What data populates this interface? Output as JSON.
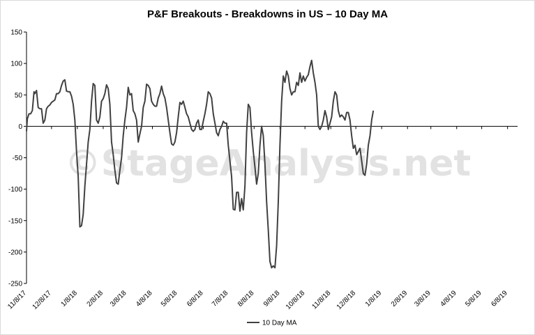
{
  "chart_data": {
    "type": "line",
    "title": "P&F Breakouts - Breakdowns in US – 10 Day MA",
    "xlabel": "",
    "ylabel": "",
    "ylim": [
      -250,
      150
    ],
    "yticks": [
      150,
      100,
      50,
      0,
      -50,
      -100,
      -150,
      -200,
      -250
    ],
    "xlim": [
      "2017-11-08",
      "2019-06-20"
    ],
    "xticks": [
      {
        "date": "2017-11-08",
        "label": "11/8/17"
      },
      {
        "date": "2017-12-08",
        "label": "12/8/17"
      },
      {
        "date": "2018-01-08",
        "label": "1/8/18"
      },
      {
        "date": "2018-02-08",
        "label": "2/8/18"
      },
      {
        "date": "2018-03-08",
        "label": "3/8/18"
      },
      {
        "date": "2018-04-08",
        "label": "4/8/18"
      },
      {
        "date": "2018-05-08",
        "label": "5/8/18"
      },
      {
        "date": "2018-06-08",
        "label": "6/8/18"
      },
      {
        "date": "2018-07-08",
        "label": "7/8/18"
      },
      {
        "date": "2018-08-08",
        "label": "8/8/18"
      },
      {
        "date": "2018-09-08",
        "label": "9/8/18"
      },
      {
        "date": "2018-10-08",
        "label": "10/8/18"
      },
      {
        "date": "2018-11-08",
        "label": "11/8/18"
      },
      {
        "date": "2018-12-08",
        "label": "12/8/18"
      },
      {
        "date": "2019-01-08",
        "label": "1/8/19"
      },
      {
        "date": "2019-02-08",
        "label": "2/8/19"
      },
      {
        "date": "2019-03-08",
        "label": "3/8/19"
      },
      {
        "date": "2019-04-08",
        "label": "4/8/19"
      },
      {
        "date": "2019-05-08",
        "label": "5/8/19"
      },
      {
        "date": "2019-06-08",
        "label": "6/8/19"
      }
    ],
    "grid": false,
    "legend": "bottom-center",
    "watermark": "©StageAnalysis.net",
    "series": [
      {
        "name": "10 Day MA",
        "color": "#404040",
        "points": [
          [
            "2017-11-08",
            -8
          ],
          [
            "2017-11-09",
            12
          ],
          [
            "2017-11-11",
            20
          ],
          [
            "2017-11-13",
            20
          ],
          [
            "2017-11-15",
            25
          ],
          [
            "2017-11-17",
            55
          ],
          [
            "2017-11-18",
            52
          ],
          [
            "2017-11-20",
            57
          ],
          [
            "2017-11-22",
            30
          ],
          [
            "2017-11-24",
            28
          ],
          [
            "2017-11-26",
            28
          ],
          [
            "2017-11-28",
            5
          ],
          [
            "2017-11-30",
            10
          ],
          [
            "2017-12-02",
            28
          ],
          [
            "2017-12-04",
            32
          ],
          [
            "2017-12-06",
            34
          ],
          [
            "2017-12-08",
            38
          ],
          [
            "2017-12-10",
            40
          ],
          [
            "2017-12-12",
            42
          ],
          [
            "2017-12-14",
            52
          ],
          [
            "2017-12-16",
            52
          ],
          [
            "2017-12-18",
            55
          ],
          [
            "2017-12-20",
            65
          ],
          [
            "2017-12-22",
            72
          ],
          [
            "2017-12-24",
            74
          ],
          [
            "2017-12-26",
            56
          ],
          [
            "2017-12-28",
            55
          ],
          [
            "2017-12-30",
            55
          ],
          [
            "2018-01-01",
            48
          ],
          [
            "2018-01-03",
            35
          ],
          [
            "2018-01-05",
            10
          ],
          [
            "2018-01-07",
            -40
          ],
          [
            "2018-01-09",
            -80
          ],
          [
            "2018-01-11",
            -160
          ],
          [
            "2018-01-13",
            -158
          ],
          [
            "2018-01-15",
            -140
          ],
          [
            "2018-01-17",
            -95
          ],
          [
            "2018-01-19",
            -60
          ],
          [
            "2018-01-21",
            -25
          ],
          [
            "2018-01-23",
            -5
          ],
          [
            "2018-01-25",
            40
          ],
          [
            "2018-01-27",
            68
          ],
          [
            "2018-01-29",
            65
          ],
          [
            "2018-01-31",
            10
          ],
          [
            "2018-02-02",
            5
          ],
          [
            "2018-02-04",
            15
          ],
          [
            "2018-02-06",
            40
          ],
          [
            "2018-02-08",
            44
          ],
          [
            "2018-02-10",
            52
          ],
          [
            "2018-02-12",
            66
          ],
          [
            "2018-02-14",
            60
          ],
          [
            "2018-02-16",
            35
          ],
          [
            "2018-02-18",
            -25
          ],
          [
            "2018-02-20",
            -45
          ],
          [
            "2018-02-22",
            -70
          ],
          [
            "2018-02-24",
            -90
          ],
          [
            "2018-02-26",
            -92
          ],
          [
            "2018-02-28",
            -70
          ],
          [
            "2018-03-02",
            -50
          ],
          [
            "2018-03-04",
            -15
          ],
          [
            "2018-03-06",
            10
          ],
          [
            "2018-03-08",
            30
          ],
          [
            "2018-03-10",
            62
          ],
          [
            "2018-03-12",
            50
          ],
          [
            "2018-03-14",
            52
          ],
          [
            "2018-03-16",
            25
          ],
          [
            "2018-03-18",
            20
          ],
          [
            "2018-03-20",
            10
          ],
          [
            "2018-03-22",
            -25
          ],
          [
            "2018-03-24",
            -12
          ],
          [
            "2018-03-26",
            0
          ],
          [
            "2018-03-28",
            30
          ],
          [
            "2018-03-30",
            40
          ],
          [
            "2018-04-01",
            67
          ],
          [
            "2018-04-03",
            65
          ],
          [
            "2018-04-05",
            60
          ],
          [
            "2018-04-07",
            40
          ],
          [
            "2018-04-09",
            35
          ],
          [
            "2018-04-11",
            32
          ],
          [
            "2018-04-13",
            32
          ],
          [
            "2018-04-15",
            45
          ],
          [
            "2018-04-17",
            52
          ],
          [
            "2018-04-19",
            64
          ],
          [
            "2018-04-21",
            52
          ],
          [
            "2018-04-23",
            45
          ],
          [
            "2018-04-25",
            30
          ],
          [
            "2018-04-27",
            10
          ],
          [
            "2018-04-29",
            -10
          ],
          [
            "2018-05-01",
            -28
          ],
          [
            "2018-05-03",
            -30
          ],
          [
            "2018-05-05",
            -25
          ],
          [
            "2018-05-07",
            -10
          ],
          [
            "2018-05-09",
            15
          ],
          [
            "2018-05-11",
            38
          ],
          [
            "2018-05-13",
            35
          ],
          [
            "2018-05-15",
            40
          ],
          [
            "2018-05-17",
            30
          ],
          [
            "2018-05-19",
            20
          ],
          [
            "2018-05-21",
            15
          ],
          [
            "2018-05-23",
            5
          ],
          [
            "2018-05-25",
            -5
          ],
          [
            "2018-05-27",
            -8
          ],
          [
            "2018-05-29",
            -5
          ],
          [
            "2018-05-31",
            5
          ],
          [
            "2018-06-02",
            10
          ],
          [
            "2018-06-04",
            -5
          ],
          [
            "2018-06-06",
            -5
          ],
          [
            "2018-06-08",
            8
          ],
          [
            "2018-06-10",
            20
          ],
          [
            "2018-06-12",
            35
          ],
          [
            "2018-06-14",
            55
          ],
          [
            "2018-06-16",
            52
          ],
          [
            "2018-06-18",
            45
          ],
          [
            "2018-06-20",
            20
          ],
          [
            "2018-06-22",
            5
          ],
          [
            "2018-06-24",
            -10
          ],
          [
            "2018-06-26",
            -15
          ],
          [
            "2018-06-28",
            -5
          ],
          [
            "2018-06-30",
            0
          ],
          [
            "2018-07-02",
            8
          ],
          [
            "2018-07-04",
            5
          ],
          [
            "2018-07-06",
            5
          ],
          [
            "2018-07-08",
            -30
          ],
          [
            "2018-07-10",
            -55
          ],
          [
            "2018-07-12",
            -80
          ],
          [
            "2018-07-14",
            -132
          ],
          [
            "2018-07-16",
            -133
          ],
          [
            "2018-07-18",
            -105
          ],
          [
            "2018-07-20",
            -105
          ],
          [
            "2018-07-22",
            -135
          ],
          [
            "2018-07-24",
            -115
          ],
          [
            "2018-07-26",
            -133
          ],
          [
            "2018-07-28",
            -95
          ],
          [
            "2018-07-30",
            -10
          ],
          [
            "2018-08-01",
            35
          ],
          [
            "2018-08-03",
            30
          ],
          [
            "2018-08-05",
            -10
          ],
          [
            "2018-08-07",
            -40
          ],
          [
            "2018-08-09",
            -65
          ],
          [
            "2018-08-11",
            -92
          ],
          [
            "2018-08-13",
            -75
          ],
          [
            "2018-08-15",
            -30
          ],
          [
            "2018-08-17",
            0
          ],
          [
            "2018-08-19",
            -15
          ],
          [
            "2018-08-21",
            -60
          ],
          [
            "2018-08-23",
            -120
          ],
          [
            "2018-08-25",
            -165
          ],
          [
            "2018-08-27",
            -215
          ],
          [
            "2018-08-29",
            -225
          ],
          [
            "2018-08-31",
            -222
          ],
          [
            "2018-09-02",
            -225
          ],
          [
            "2018-09-04",
            -190
          ],
          [
            "2018-09-06",
            -120
          ],
          [
            "2018-09-08",
            -30
          ],
          [
            "2018-09-10",
            40
          ],
          [
            "2018-09-12",
            80
          ],
          [
            "2018-09-14",
            70
          ],
          [
            "2018-09-16",
            88
          ],
          [
            "2018-09-18",
            80
          ],
          [
            "2018-09-20",
            60
          ],
          [
            "2018-09-22",
            50
          ],
          [
            "2018-09-24",
            55
          ],
          [
            "2018-09-26",
            55
          ],
          [
            "2018-09-28",
            70
          ],
          [
            "2018-09-30",
            65
          ],
          [
            "2018-10-02",
            85
          ],
          [
            "2018-10-04",
            70
          ],
          [
            "2018-10-06",
            80
          ],
          [
            "2018-10-08",
            72
          ],
          [
            "2018-10-10",
            78
          ],
          [
            "2018-10-12",
            82
          ],
          [
            "2018-10-14",
            95
          ],
          [
            "2018-10-16",
            105
          ],
          [
            "2018-10-18",
            85
          ],
          [
            "2018-10-20",
            70
          ],
          [
            "2018-10-22",
            50
          ],
          [
            "2018-10-24",
            0
          ],
          [
            "2018-10-26",
            -5
          ],
          [
            "2018-10-28",
            0
          ],
          [
            "2018-10-30",
            10
          ],
          [
            "2018-11-01",
            25
          ],
          [
            "2018-11-03",
            15
          ],
          [
            "2018-11-05",
            -5
          ],
          [
            "2018-11-07",
            5
          ],
          [
            "2018-11-09",
            15
          ],
          [
            "2018-11-11",
            40
          ],
          [
            "2018-11-13",
            55
          ],
          [
            "2018-11-15",
            50
          ],
          [
            "2018-11-17",
            25
          ],
          [
            "2018-11-19",
            15
          ],
          [
            "2018-11-21",
            18
          ],
          [
            "2018-11-23",
            15
          ],
          [
            "2018-11-25",
            10
          ],
          [
            "2018-11-27",
            22
          ],
          [
            "2018-11-29",
            22
          ],
          [
            "2018-12-01",
            10
          ],
          [
            "2018-12-03",
            -15
          ],
          [
            "2018-12-05",
            -35
          ],
          [
            "2018-12-07",
            -30
          ],
          [
            "2018-12-09",
            -45
          ],
          [
            "2018-12-11",
            -40
          ],
          [
            "2018-12-13",
            -35
          ],
          [
            "2018-12-15",
            -55
          ],
          [
            "2018-12-17",
            -75
          ],
          [
            "2018-12-19",
            -78
          ],
          [
            "2018-12-21",
            -60
          ],
          [
            "2018-12-23",
            -30
          ],
          [
            "2018-12-25",
            -15
          ],
          [
            "2018-12-27",
            10
          ],
          [
            "2018-12-29",
            25
          ]
        ]
      }
    ]
  }
}
